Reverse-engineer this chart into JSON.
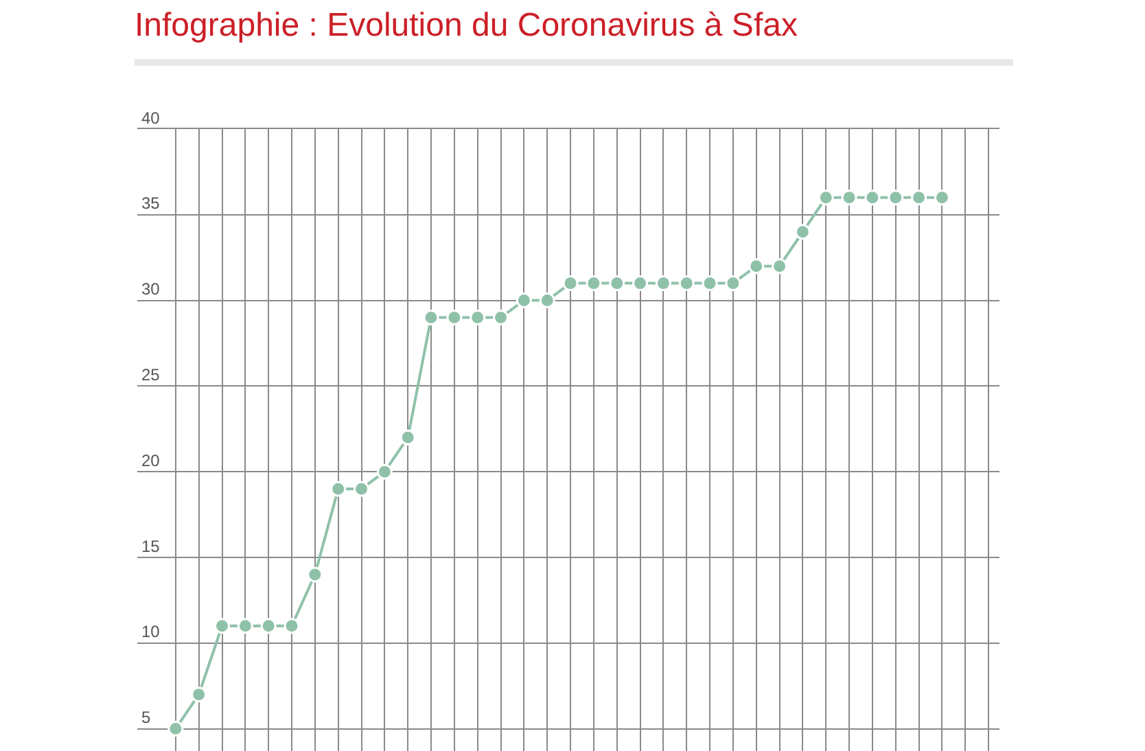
{
  "chart_data": {
    "type": "line",
    "title": "Infographie : Evolution du Coronavirus à Sfax",
    "categories": [
      null,
      null,
      null,
      null,
      null,
      null,
      null,
      null,
      null,
      null,
      null,
      null,
      null,
      null,
      null,
      null,
      null,
      null,
      null,
      null,
      null,
      null,
      null,
      null,
      null,
      null,
      null,
      null,
      null,
      null,
      null,
      null,
      null,
      null,
      null,
      null
    ],
    "series": [
      {
        "color": "#8fc1a9",
        "values": [
          5,
          7,
          11,
          11,
          11,
          11,
          14,
          19,
          19,
          20,
          22,
          29,
          29,
          29,
          29,
          30,
          30,
          31,
          31,
          31,
          31,
          31,
          31,
          31,
          31,
          32,
          32,
          34,
          36,
          36,
          36,
          36,
          36,
          36,
          null,
          null
        ]
      }
    ],
    "ylim": [
      3.7,
      40
    ],
    "yticks": [
      5,
      10,
      15,
      20,
      25,
      30,
      35,
      40
    ],
    "grid": true,
    "marker": "circle",
    "line_style": "solid",
    "tick_labels": "y"
  }
}
